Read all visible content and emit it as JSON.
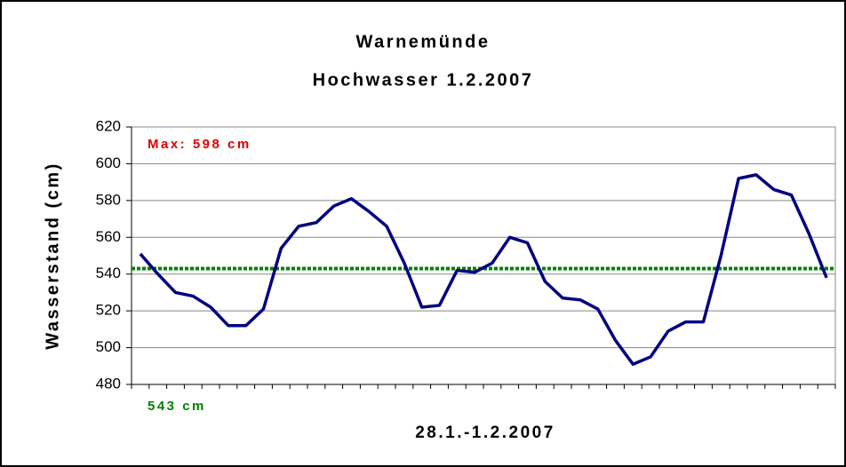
{
  "chart_data": {
    "type": "line",
    "title": "Warnemünde",
    "subtitle": "Hochwasser 1.2.2007",
    "x_label": "28.1.-1.2.2007",
    "y_label": "Wasserstand (cm)",
    "annotation": "Max: 598 cm",
    "reference_line": {
      "value": 543,
      "label": "543 cm",
      "color": "#008000"
    },
    "categories": [
      null,
      null,
      null,
      null,
      null,
      null,
      null,
      null,
      null,
      null,
      null,
      null,
      null,
      null,
      null,
      null,
      null,
      null,
      null,
      null,
      null,
      null,
      null,
      null,
      null,
      null,
      null,
      null,
      null,
      null,
      null,
      null,
      null,
      null,
      null,
      null,
      null,
      null,
      null,
      null
    ],
    "series": [
      {
        "name": "Wasserstand",
        "color": "#000080",
        "values": [
          551,
          540,
          530,
          528,
          522,
          512,
          512,
          521,
          554,
          566,
          568,
          577,
          581,
          574,
          566,
          546,
          522,
          523,
          542,
          541,
          546,
          560,
          557,
          536,
          527,
          526,
          521,
          504,
          491,
          495,
          509,
          514,
          514,
          550,
          592,
          594,
          586,
          583,
          562,
          538
        ]
      }
    ],
    "ylim": [
      480,
      620
    ],
    "yticks": [
      480,
      500,
      520,
      540,
      560,
      580,
      600,
      620
    ],
    "grid": true
  }
}
